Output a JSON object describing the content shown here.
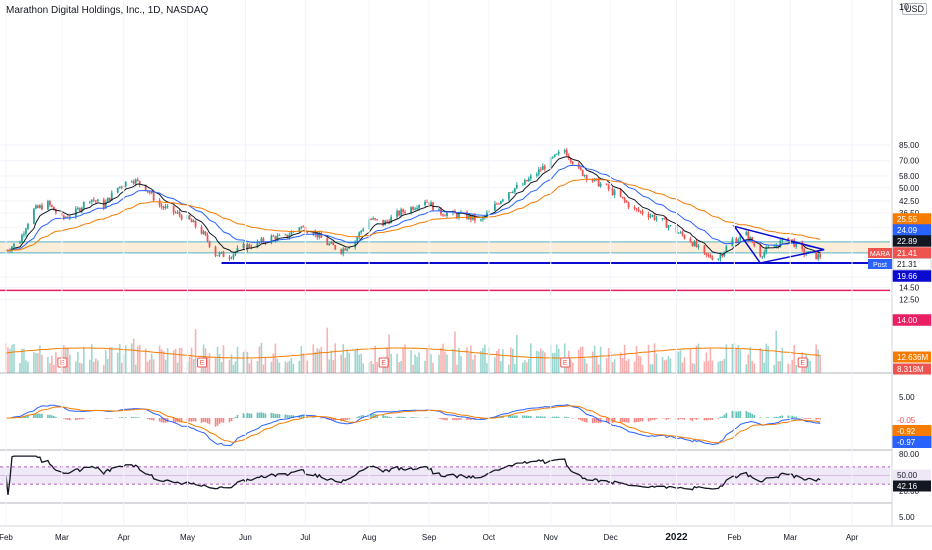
{
  "title": "Marathon Digital Holdings, Inc., 1D, NASDAQ",
  "currency_button": "USD",
  "top_axis_label": "10",
  "colors": {
    "up": "#26a69a",
    "down": "#ef5350",
    "ema_fast": "#131722",
    "ema_mid": "#2962ff",
    "ema_slow": "#f57c00",
    "band": "#fbe8cf",
    "support": "#0b0bd0",
    "red_line": "#e91e63",
    "rsi": "#131722",
    "rsi_band": "#ede7f6"
  },
  "chart_data": [
    {
      "type": "candlestick",
      "name": "price",
      "scale": "log",
      "y_ticks": [
        "85.00",
        "70.00",
        "58.00",
        "50.00",
        "42.50",
        "36.50",
        "30.50",
        "16.50",
        "14.50",
        "12.50"
      ],
      "x_ticks": [
        "Feb",
        "Mar",
        "Apr",
        "May",
        "Jun",
        "Jul",
        "Aug",
        "Sep",
        "Oct",
        "Nov",
        "Dec",
        "2022",
        "Feb",
        "Mar",
        "Apr"
      ],
      "close_path": [
        [
          "2021-02-01",
          23
        ],
        [
          "2021-02-08",
          26
        ],
        [
          "2021-02-15",
          38
        ],
        [
          "2021-02-22",
          41
        ],
        [
          "2021-03-01",
          34
        ],
        [
          "2021-03-08",
          37
        ],
        [
          "2021-03-15",
          44
        ],
        [
          "2021-03-22",
          40
        ],
        [
          "2021-03-29",
          50
        ],
        [
          "2021-04-05",
          56
        ],
        [
          "2021-04-12",
          50
        ],
        [
          "2021-04-19",
          40
        ],
        [
          "2021-04-26",
          37
        ],
        [
          "2021-05-03",
          34
        ],
        [
          "2021-05-10",
          29
        ],
        [
          "2021-05-17",
          22
        ],
        [
          "2021-05-24",
          21.5
        ],
        [
          "2021-05-31",
          24
        ],
        [
          "2021-06-07",
          25
        ],
        [
          "2021-06-14",
          27
        ],
        [
          "2021-06-21",
          27
        ],
        [
          "2021-06-28",
          31
        ],
        [
          "2021-07-05",
          29
        ],
        [
          "2021-07-12",
          25
        ],
        [
          "2021-07-19",
          23
        ],
        [
          "2021-07-26",
          26
        ],
        [
          "2021-08-02",
          34
        ],
        [
          "2021-08-09",
          32
        ],
        [
          "2021-08-16",
          36
        ],
        [
          "2021-08-23",
          39
        ],
        [
          "2021-08-30",
          43
        ],
        [
          "2021-09-06",
          37
        ],
        [
          "2021-09-13",
          36
        ],
        [
          "2021-09-20",
          35
        ],
        [
          "2021-09-27",
          33
        ],
        [
          "2021-10-04",
          40
        ],
        [
          "2021-10-11",
          48
        ],
        [
          "2021-10-18",
          52
        ],
        [
          "2021-10-25",
          60
        ],
        [
          "2021-11-01",
          70
        ],
        [
          "2021-11-08",
          80
        ],
        [
          "2021-11-15",
          62
        ],
        [
          "2021-11-22",
          55
        ],
        [
          "2021-11-29",
          50
        ],
        [
          "2021-12-06",
          44
        ],
        [
          "2021-12-13",
          38
        ],
        [
          "2021-12-20",
          36
        ],
        [
          "2021-12-27",
          33
        ],
        [
          "2022-01-03",
          29
        ],
        [
          "2022-01-10",
          26
        ],
        [
          "2022-01-17",
          21.5
        ],
        [
          "2022-01-24",
          21
        ],
        [
          "2022-01-31",
          26
        ],
        [
          "2022-02-07",
          28
        ],
        [
          "2022-02-14",
          22
        ],
        [
          "2022-02-21",
          24
        ],
        [
          "2022-02-28",
          27
        ],
        [
          "2022-03-07",
          22.5
        ],
        [
          "2022-03-14",
          21.4
        ]
      ],
      "indicators": [
        "EMA (black)",
        "EMA (blue)",
        "EMA (orange)"
      ],
      "annotations": {
        "horizontal_lines": [
          25.55,
          19.66,
          14.0
        ],
        "band": [
          22.3,
          25.55
        ],
        "triangle": {
          "from": "2022-02-01",
          "to": "2022-03-18",
          "top": 31.0,
          "bottom": 19.66,
          "apex": 23.2
        }
      }
    },
    {
      "type": "bar",
      "name": "volume",
      "labels": [
        {
          "value": "12.636M",
          "color": "#f57c00"
        },
        {
          "value": "8.318M",
          "color": "#ef5350"
        }
      ],
      "earnings_markers": [
        "2021-03-01",
        "2021-05-10",
        "2021-08-09",
        "2021-11-08",
        "2022-03-07"
      ],
      "earnings_label": "E"
    },
    {
      "type": "line",
      "name": "MACD",
      "y_ticks": [
        "5.00"
      ],
      "values": [
        "-0.05",
        "-0.92",
        "-0.97"
      ]
    },
    {
      "type": "line",
      "name": "RSI",
      "y_ticks": [
        "80.00",
        "20.00"
      ],
      "ylim": [
        0,
        100
      ],
      "values": [
        "50.00",
        "42.16"
      ]
    },
    {
      "type": "line",
      "name": "bottom pane",
      "y_ticks": [
        "5.00"
      ]
    }
  ],
  "price_labels": [
    {
      "value": "25.55",
      "bg": "#f57c00",
      "fg": "#ffffff"
    },
    {
      "value": "24.09",
      "bg": "#2962ff",
      "fg": "#ffffff"
    },
    {
      "value": "22.89",
      "bg": "#131722",
      "fg": "#ffffff"
    },
    {
      "value": "21.41",
      "bg": "#ef5350",
      "fg": "#ffffff",
      "tag": "MARA",
      "tag_bg": "#ef5350"
    },
    {
      "value": "21.31",
      "bg": "#ffffff",
      "fg": "#131722",
      "tag": "Post",
      "tag_bg": "#2962ff"
    },
    {
      "value": "19.66",
      "bg": "#0b0bd0",
      "fg": "#ffffff"
    },
    {
      "value": "14.00",
      "bg": "#e91e63",
      "fg": "#ffffff"
    }
  ]
}
